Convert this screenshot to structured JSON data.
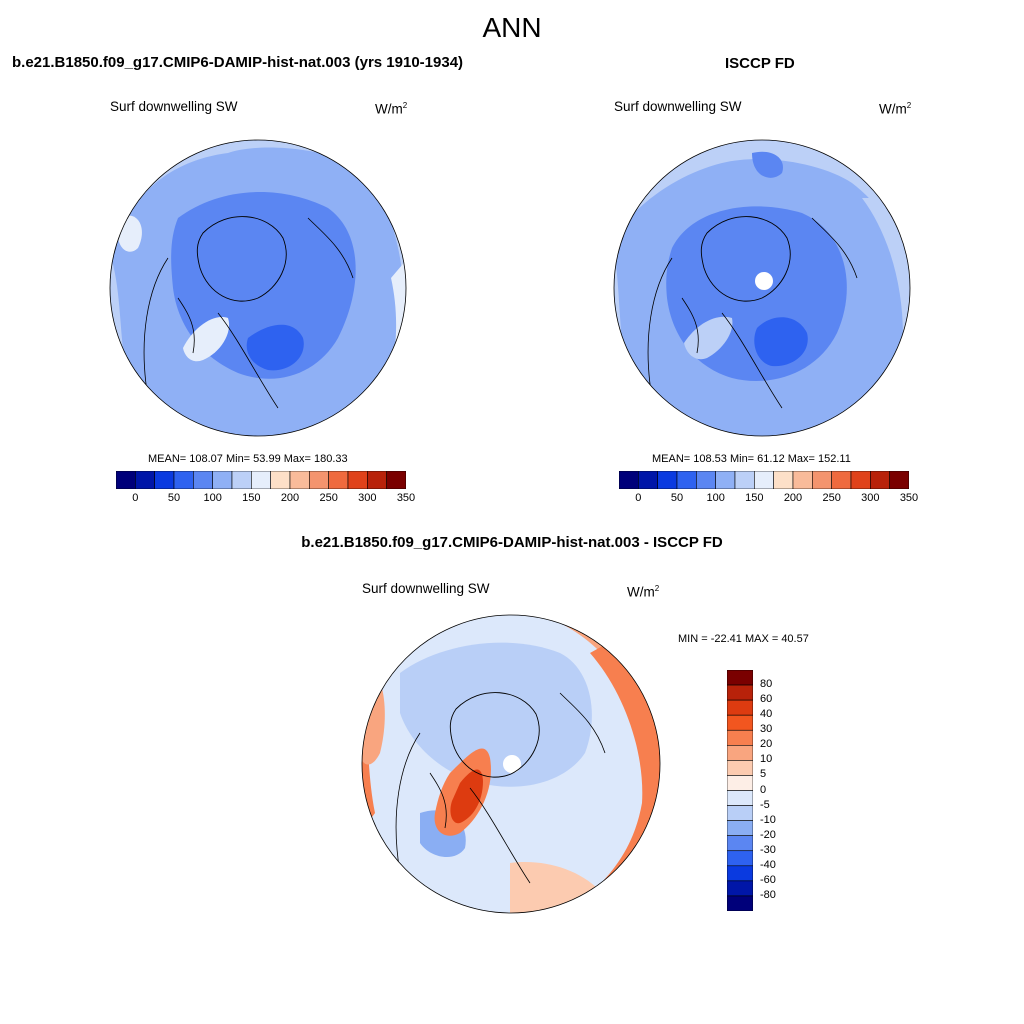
{
  "figure": {
    "title": "ANN"
  },
  "panels": [
    {
      "id": "model",
      "title": "b.e21.B1850.f09_g17.CMIP6-DAMIP-hist-nat.003 (yrs 1910-1934)",
      "variable": "Surf downwelling SW",
      "units_base": "W/m",
      "units_exp": "2",
      "stats": "MEAN= 108.07  Min=  53.99  Max= 180.33",
      "colorbar_ticks": [
        "0",
        "50",
        "100",
        "150",
        "200",
        "250",
        "300",
        "350"
      ]
    },
    {
      "id": "obs",
      "title": "ISCCP FD",
      "variable": "Surf downwelling SW",
      "units_base": "W/m",
      "units_exp": "2",
      "stats": "MEAN= 108.53  Min=  61.12  Max= 152.11",
      "colorbar_ticks": [
        "0",
        "50",
        "100",
        "150",
        "200",
        "250",
        "300",
        "350"
      ]
    },
    {
      "id": "diff",
      "title": "b.e21.B1850.f09_g17.CMIP6-DAMIP-hist-nat.003 - ISCCP FD",
      "variable": "Surf downwelling SW",
      "units_base": "W/m",
      "units_exp": "2",
      "stats": "MIN = -22.41 MAX =  40.57",
      "colorbar_ticks": [
        "80",
        "60",
        "40",
        "30",
        "20",
        "10",
        "5",
        "0",
        "-5",
        "-10",
        "-20",
        "-30",
        "-40",
        "-60",
        "-80"
      ]
    }
  ],
  "colors": {
    "abs_scale": [
      "#00007a",
      "#0016a8",
      "#0a3ae0",
      "#2e62f0",
      "#5b86f2",
      "#8fb0f5",
      "#bcd0f7",
      "#e6eefb",
      "#fde0c8",
      "#f9bb9a",
      "#f4946e",
      "#ef6a3e",
      "#e0421a",
      "#b8220a",
      "#7a0000"
    ],
    "diff_scale": [
      "#7a0000",
      "#b8220a",
      "#dd3b10",
      "#f2561f",
      "#f77f4f",
      "#f9a57f",
      "#fccbb0",
      "#fdeee6",
      "#dce8fb",
      "#b9cff7",
      "#8aaef3",
      "#5b86f2",
      "#2e62f0",
      "#0a3ae0",
      "#0016a8",
      "#00007a"
    ]
  }
}
